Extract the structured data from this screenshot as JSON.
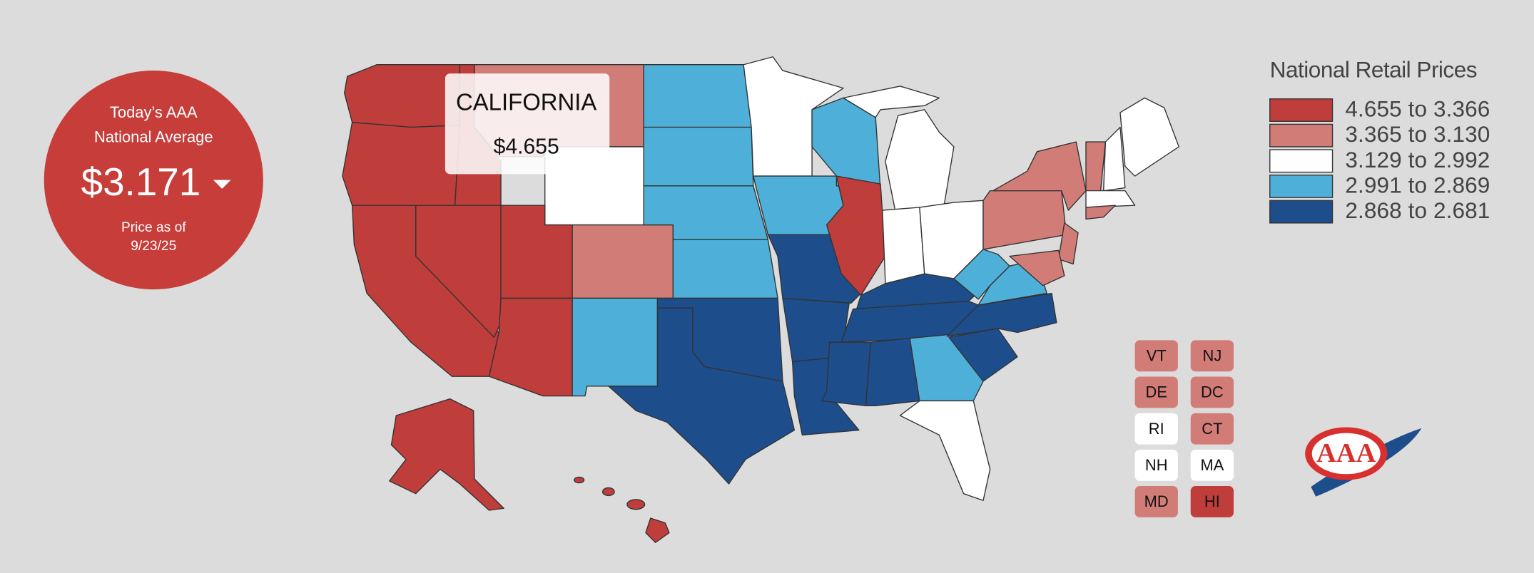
{
  "national_average": {
    "heading_line1": "Today’s AAA",
    "heading_line2": "National Average",
    "price": "$3.171",
    "date_label": "Price as of",
    "date": "9/23/25"
  },
  "tooltip": {
    "state": "CALIFORNIA",
    "price": "$4.655"
  },
  "legend": {
    "title": "National Retail Prices",
    "items": [
      {
        "label": "4.655 to 3.366",
        "color": "#bf3d3a"
      },
      {
        "label": "3.365 to 3.130",
        "color": "#d27c77"
      },
      {
        "label": "3.129 to 2.992",
        "color": "#ffffff"
      },
      {
        "label": "2.991 to 2.869",
        "color": "#4eb0d8"
      },
      {
        "label": "2.868 to 2.681",
        "color": "#1e4d8b"
      }
    ]
  },
  "state_boxes": [
    {
      "label": "VT",
      "color": "#d27c77"
    },
    {
      "label": "NJ",
      "color": "#d27c77"
    },
    {
      "label": "DE",
      "color": "#d27c77"
    },
    {
      "label": "DC",
      "color": "#d27c77"
    },
    {
      "label": "RI",
      "color": "#ffffff"
    },
    {
      "label": "CT",
      "color": "#d27c77"
    },
    {
      "label": "NH",
      "color": "#ffffff"
    },
    {
      "label": "MA",
      "color": "#ffffff"
    },
    {
      "label": "MD",
      "color": "#d27c77"
    },
    {
      "label": "HI",
      "color": "#bf3d3a"
    }
  ],
  "logo_text": "AAA"
}
